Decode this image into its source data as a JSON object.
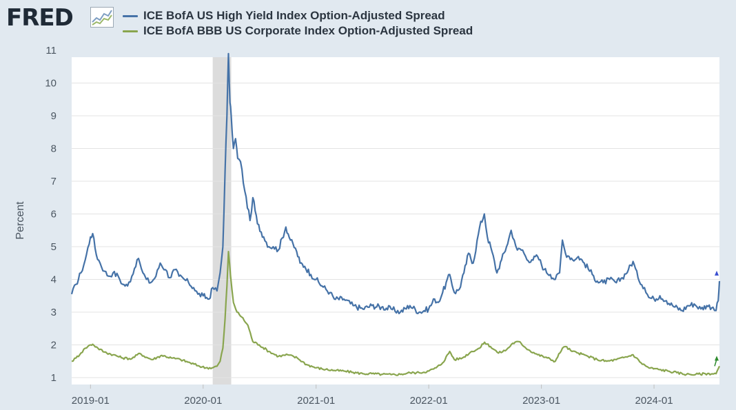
{
  "logo": {
    "text": "FRED",
    "icon": "fred-graph-icon"
  },
  "chart_data": {
    "type": "line",
    "xlabel": "",
    "ylabel": "Percent",
    "ylim": [
      1,
      11
    ],
    "yticks": [
      1,
      2,
      3,
      4,
      5,
      6,
      7,
      8,
      9,
      10,
      11
    ],
    "xlim": [
      "2018-11-01",
      "2024-07-31"
    ],
    "xticks": [
      "2019-01",
      "2020-01",
      "2021-01",
      "2022-01",
      "2023-01",
      "2024-01"
    ],
    "grid": true,
    "legend_position": "top",
    "recession_shading": {
      "start": "2020-02",
      "end": "2020-04",
      "color": "#dcdcdc"
    },
    "series": [
      {
        "name": "ICE BofA US High Yield Index Option-Adjusted Spread",
        "color": "#4572a7",
        "points": [
          [
            "2018-11-01",
            3.55
          ],
          [
            "2018-11-15",
            3.85
          ],
          [
            "2018-12-01",
            4.2
          ],
          [
            "2018-12-15",
            4.6
          ],
          [
            "2019-01-01",
            5.3
          ],
          [
            "2019-01-08",
            5.4
          ],
          [
            "2019-01-20",
            4.75
          ],
          [
            "2019-02-01",
            4.5
          ],
          [
            "2019-02-15",
            4.25
          ],
          [
            "2019-03-01",
            4.1
          ],
          [
            "2019-03-15",
            4.2
          ],
          [
            "2019-04-01",
            4.1
          ],
          [
            "2019-04-15",
            3.85
          ],
          [
            "2019-05-01",
            3.8
          ],
          [
            "2019-05-15",
            4.1
          ],
          [
            "2019-06-01",
            4.6
          ],
          [
            "2019-06-10",
            4.5
          ],
          [
            "2019-06-20",
            4.2
          ],
          [
            "2019-07-01",
            4.0
          ],
          [
            "2019-07-15",
            3.9
          ],
          [
            "2019-08-01",
            4.1
          ],
          [
            "2019-08-15",
            4.5
          ],
          [
            "2019-09-01",
            4.3
          ],
          [
            "2019-09-15",
            4.05
          ],
          [
            "2019-10-01",
            4.3
          ],
          [
            "2019-10-15",
            4.1
          ],
          [
            "2019-11-01",
            4.0
          ],
          [
            "2019-11-15",
            3.9
          ],
          [
            "2019-12-01",
            3.75
          ],
          [
            "2019-12-15",
            3.55
          ],
          [
            "2020-01-01",
            3.5
          ],
          [
            "2020-01-20",
            3.4
          ],
          [
            "2020-02-01",
            3.75
          ],
          [
            "2020-02-15",
            3.65
          ],
          [
            "2020-02-25",
            4.2
          ],
          [
            "2020-03-05",
            5.0
          ],
          [
            "2020-03-12",
            7.3
          ],
          [
            "2020-03-18",
            9.0
          ],
          [
            "2020-03-23",
            10.9
          ],
          [
            "2020-03-28",
            9.4
          ],
          [
            "2020-04-01",
            9.0
          ],
          [
            "2020-04-08",
            8.0
          ],
          [
            "2020-04-15",
            8.3
          ],
          [
            "2020-04-22",
            7.7
          ],
          [
            "2020-05-01",
            7.6
          ],
          [
            "2020-05-15",
            6.7
          ],
          [
            "2020-06-01",
            5.8
          ],
          [
            "2020-06-10",
            6.5
          ],
          [
            "2020-06-25",
            5.7
          ],
          [
            "2020-07-15",
            5.3
          ],
          [
            "2020-08-01",
            5.0
          ],
          [
            "2020-08-15",
            5.0
          ],
          [
            "2020-09-01",
            4.9
          ],
          [
            "2020-09-25",
            5.6
          ],
          [
            "2020-10-10",
            5.2
          ],
          [
            "2020-10-30",
            4.85
          ],
          [
            "2020-11-10",
            4.5
          ],
          [
            "2020-11-25",
            4.4
          ],
          [
            "2020-12-15",
            4.15
          ],
          [
            "2021-01-01",
            4.0
          ],
          [
            "2021-01-20",
            3.8
          ],
          [
            "2021-02-15",
            3.6
          ],
          [
            "2021-03-01",
            3.4
          ],
          [
            "2021-04-01",
            3.4
          ],
          [
            "2021-05-01",
            3.2
          ],
          [
            "2021-06-01",
            3.1
          ],
          [
            "2021-07-01",
            3.2
          ],
          [
            "2021-08-01",
            3.15
          ],
          [
            "2021-09-01",
            3.1
          ],
          [
            "2021-10-01",
            3.0
          ],
          [
            "2021-11-01",
            3.2
          ],
          [
            "2021-12-01",
            3.0
          ],
          [
            "2022-01-01",
            3.1
          ],
          [
            "2022-01-20",
            3.4
          ],
          [
            "2022-02-01",
            3.3
          ],
          [
            "2022-02-15",
            3.6
          ],
          [
            "2022-03-10",
            4.15
          ],
          [
            "2022-03-25",
            3.6
          ],
          [
            "2022-04-10",
            3.7
          ],
          [
            "2022-04-25",
            4.2
          ],
          [
            "2022-05-10",
            4.8
          ],
          [
            "2022-05-25",
            4.5
          ],
          [
            "2022-06-15",
            5.6
          ],
          [
            "2022-06-30",
            6.0
          ],
          [
            "2022-07-10",
            5.3
          ],
          [
            "2022-07-25",
            4.85
          ],
          [
            "2022-08-10",
            4.2
          ],
          [
            "2022-08-25",
            4.6
          ],
          [
            "2022-09-10",
            5.0
          ],
          [
            "2022-09-25",
            5.5
          ],
          [
            "2022-10-05",
            5.2
          ],
          [
            "2022-10-15",
            4.9
          ],
          [
            "2022-11-01",
            4.9
          ],
          [
            "2022-11-15",
            4.6
          ],
          [
            "2022-12-01",
            4.6
          ],
          [
            "2022-12-20",
            4.7
          ],
          [
            "2023-01-10",
            4.3
          ],
          [
            "2023-01-30",
            4.15
          ],
          [
            "2023-02-15",
            4.0
          ],
          [
            "2023-03-01",
            4.2
          ],
          [
            "2023-03-10",
            5.2
          ],
          [
            "2023-03-20",
            4.8
          ],
          [
            "2023-04-01",
            4.7
          ],
          [
            "2023-04-20",
            4.6
          ],
          [
            "2023-05-01",
            4.7
          ],
          [
            "2023-05-20",
            4.5
          ],
          [
            "2023-06-15",
            4.15
          ],
          [
            "2023-07-01",
            3.95
          ],
          [
            "2023-07-20",
            3.9
          ],
          [
            "2023-08-10",
            4.0
          ],
          [
            "2023-09-01",
            3.9
          ],
          [
            "2023-09-20",
            4.05
          ],
          [
            "2023-10-10",
            4.3
          ],
          [
            "2023-10-25",
            4.55
          ],
          [
            "2023-11-10",
            4.05
          ],
          [
            "2023-12-01",
            3.75
          ],
          [
            "2023-12-15",
            3.45
          ],
          [
            "2024-01-01",
            3.4
          ],
          [
            "2024-01-20",
            3.5
          ],
          [
            "2024-02-10",
            3.35
          ],
          [
            "2024-03-01",
            3.2
          ],
          [
            "2024-04-01",
            3.05
          ],
          [
            "2024-04-20",
            3.2
          ],
          [
            "2024-05-10",
            3.25
          ],
          [
            "2024-06-01",
            3.1
          ],
          [
            "2024-06-20",
            3.2
          ],
          [
            "2024-07-10",
            3.15
          ],
          [
            "2024-07-20",
            3.05
          ],
          [
            "2024-07-27",
            3.35
          ],
          [
            "2024-07-31",
            3.95
          ]
        ]
      },
      {
        "name": "ICE BofA BBB US Corporate Index Option-Adjusted Spread",
        "color": "#89a54e",
        "points": [
          [
            "2018-11-01",
            1.5
          ],
          [
            "2018-11-15",
            1.6
          ],
          [
            "2018-12-01",
            1.75
          ],
          [
            "2018-12-15",
            1.9
          ],
          [
            "2019-01-01",
            2.0
          ],
          [
            "2019-01-08",
            2.02
          ],
          [
            "2019-01-25",
            1.9
          ],
          [
            "2019-02-15",
            1.78
          ],
          [
            "2019-03-15",
            1.7
          ],
          [
            "2019-04-15",
            1.6
          ],
          [
            "2019-05-15",
            1.58
          ],
          [
            "2019-06-10",
            1.74
          ],
          [
            "2019-07-01",
            1.62
          ],
          [
            "2019-07-20",
            1.55
          ],
          [
            "2019-08-20",
            1.68
          ],
          [
            "2019-09-20",
            1.6
          ],
          [
            "2019-10-20",
            1.55
          ],
          [
            "2019-11-20",
            1.45
          ],
          [
            "2019-12-20",
            1.35
          ],
          [
            "2020-01-10",
            1.3
          ],
          [
            "2020-01-30",
            1.3
          ],
          [
            "2020-02-15",
            1.35
          ],
          [
            "2020-02-25",
            1.5
          ],
          [
            "2020-03-05",
            1.9
          ],
          [
            "2020-03-12",
            2.8
          ],
          [
            "2020-03-18",
            3.8
          ],
          [
            "2020-03-23",
            4.85
          ],
          [
            "2020-03-30",
            4.1
          ],
          [
            "2020-04-08",
            3.3
          ],
          [
            "2020-04-20",
            3.0
          ],
          [
            "2020-05-05",
            2.85
          ],
          [
            "2020-05-25",
            2.6
          ],
          [
            "2020-06-10",
            2.1
          ],
          [
            "2020-07-01",
            2.0
          ],
          [
            "2020-08-01",
            1.8
          ],
          [
            "2020-09-01",
            1.65
          ],
          [
            "2020-10-01",
            1.7
          ],
          [
            "2020-11-01",
            1.6
          ],
          [
            "2020-12-01",
            1.4
          ],
          [
            "2021-01-01",
            1.3
          ],
          [
            "2021-02-01",
            1.25
          ],
          [
            "2021-03-01",
            1.22
          ],
          [
            "2021-04-01",
            1.2
          ],
          [
            "2021-05-01",
            1.16
          ],
          [
            "2021-06-01",
            1.12
          ],
          [
            "2021-07-01",
            1.12
          ],
          [
            "2021-08-01",
            1.1
          ],
          [
            "2021-09-01",
            1.09
          ],
          [
            "2021-10-01",
            1.1
          ],
          [
            "2021-11-01",
            1.15
          ],
          [
            "2021-12-01",
            1.15
          ],
          [
            "2022-01-01",
            1.2
          ],
          [
            "2022-01-25",
            1.3
          ],
          [
            "2022-02-15",
            1.45
          ],
          [
            "2022-03-10",
            1.8
          ],
          [
            "2022-03-25",
            1.55
          ],
          [
            "2022-04-20",
            1.6
          ],
          [
            "2022-05-20",
            1.8
          ],
          [
            "2022-06-15",
            1.9
          ],
          [
            "2022-07-01",
            2.08
          ],
          [
            "2022-07-20",
            1.95
          ],
          [
            "2022-08-15",
            1.75
          ],
          [
            "2022-09-10",
            1.85
          ],
          [
            "2022-09-30",
            2.05
          ],
          [
            "2022-10-20",
            2.1
          ],
          [
            "2022-11-20",
            1.85
          ],
          [
            "2022-12-20",
            1.7
          ],
          [
            "2023-01-20",
            1.6
          ],
          [
            "2023-02-15",
            1.5
          ],
          [
            "2023-03-10",
            1.9
          ],
          [
            "2023-03-20",
            1.95
          ],
          [
            "2023-04-10",
            1.8
          ],
          [
            "2023-05-01",
            1.75
          ],
          [
            "2023-06-01",
            1.65
          ],
          [
            "2023-07-01",
            1.55
          ],
          [
            "2023-08-01",
            1.5
          ],
          [
            "2023-09-01",
            1.55
          ],
          [
            "2023-10-10",
            1.65
          ],
          [
            "2023-10-25",
            1.7
          ],
          [
            "2023-11-20",
            1.45
          ],
          [
            "2023-12-15",
            1.3
          ],
          [
            "2024-01-15",
            1.25
          ],
          [
            "2024-02-15",
            1.2
          ],
          [
            "2024-03-15",
            1.15
          ],
          [
            "2024-04-15",
            1.1
          ],
          [
            "2024-05-15",
            1.1
          ],
          [
            "2024-06-15",
            1.12
          ],
          [
            "2024-07-20",
            1.12
          ],
          [
            "2024-07-31",
            1.35
          ]
        ]
      }
    ]
  }
}
